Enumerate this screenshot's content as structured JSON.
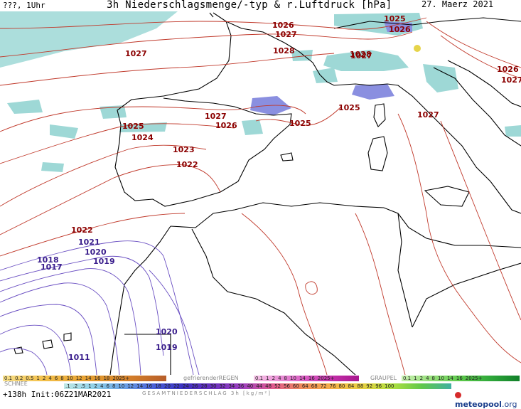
{
  "header": {
    "left": "???, 1Uhr",
    "title": "3h Niederschlagsmenge/-typ & r.Luftdruck [hPa]",
    "date": "27. Maerz 2021"
  },
  "isobars": {
    "labels_high": [
      "1025",
      "1026",
      "1026",
      "1027",
      "1027",
      "1028",
      "1028",
      "1026",
      "1027",
      "1027",
      "1027",
      "1026",
      "1025",
      "1024",
      "1023",
      "1022",
      "1025",
      "1025",
      "1027",
      "1022"
    ],
    "labels_low": [
      "1021",
      "1020",
      "1019",
      "1018",
      "1017",
      "1020",
      "1019",
      "1011"
    ]
  },
  "legend": {
    "snow_label": "SCHNEE",
    "snow_values": [
      "0.1",
      "0.2",
      "0.5",
      "1",
      "2",
      "4",
      "6",
      "8",
      "10",
      "12",
      "14",
      "16",
      "18",
      "2025+"
    ],
    "freezing_label": "gefrierenderREGEN",
    "freezing_values": [
      "0.1",
      "1",
      "2",
      "4",
      "8",
      "10",
      "14",
      "16",
      "2025+"
    ],
    "graupel_label": "GRAUPEL",
    "graupel_values": [
      "0.1",
      "1",
      "2",
      "4",
      "8",
      "10",
      "14",
      "16",
      "2025+"
    ],
    "total_values": [
      ".1",
      ".2",
      ".5",
      "1",
      "2",
      "4",
      "6",
      "8",
      "10",
      "12",
      "14",
      "16",
      "18",
      "20",
      "22",
      "24",
      "26",
      "28",
      "30",
      "32",
      "34",
      "36",
      "40",
      "44",
      "48",
      "52",
      "56",
      "60",
      "64",
      "68",
      "72",
      "76",
      "80",
      "84",
      "88",
      "92",
      "96",
      "100"
    ],
    "total_label": "GESAMTNIEDERSCHLAG 3h [kg/m²]"
  },
  "footer": {
    "run": "+138h Init:06Z21MAR2021",
    "brand": "meteopool",
    "brand_tld": ".org"
  },
  "colors": {
    "precip_light": "#9ed8d6",
    "precip_blue": "#8a8fe0",
    "isobar_high": "#c0392b",
    "isobar_low": "#6a4fc2",
    "coast": "#000000"
  }
}
